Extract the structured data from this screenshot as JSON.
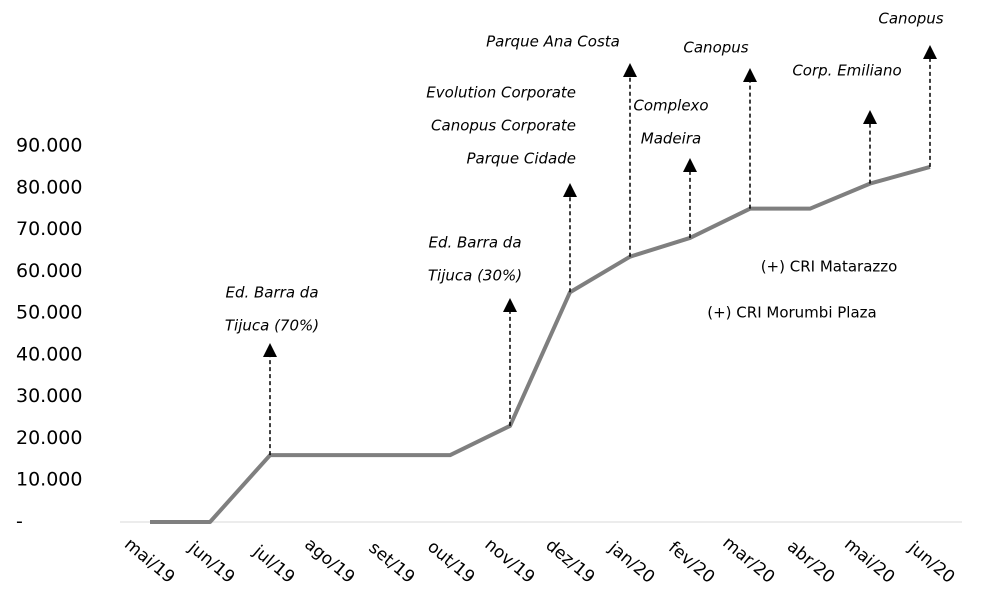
{
  "chart_data": {
    "type": "line",
    "categories": [
      "mai/19",
      "jun/19",
      "jul/19",
      "ago/19",
      "set/19",
      "out/19",
      "nov/19",
      "dez/19",
      "jan/20",
      "fev/20",
      "mar/20",
      "abr/20",
      "mai/20",
      "jun/20"
    ],
    "series": [
      {
        "color": "#7f7f7f",
        "values": [
          0,
          0,
          16000,
          16000,
          16000,
          16000,
          23000,
          55000,
          63500,
          68000,
          75000,
          75000,
          81000,
          85000
        ]
      }
    ],
    "ylim": [
      0,
      90000
    ],
    "yticks": [
      {
        "value": 0,
        "label": "-"
      },
      {
        "value": 10000,
        "label": "10.000"
      },
      {
        "value": 20000,
        "label": "20.000"
      },
      {
        "value": 30000,
        "label": "30.000"
      },
      {
        "value": 40000,
        "label": "40.000"
      },
      {
        "value": 50000,
        "label": "50.000"
      },
      {
        "value": 60000,
        "label": "60.000"
      },
      {
        "value": 70000,
        "label": "70.000"
      },
      {
        "value": 80000,
        "label": "80.000"
      },
      {
        "value": 90000,
        "label": "90.000"
      }
    ],
    "annotations": [
      {
        "category": "jul/19",
        "lines": [
          "Ed. Barra da",
          "Tijuca (70%)"
        ]
      },
      {
        "category": "nov/19",
        "lines": [
          "Ed. Barra da",
          "Tijuca (30%)"
        ]
      },
      {
        "category": "dez/19",
        "lines": [
          "Evolution Corporate",
          "Canopus Corporate",
          "Parque Cidade"
        ]
      },
      {
        "category": "jan/20",
        "lines": [
          "Parque Ana Costa"
        ]
      },
      {
        "category": "fev/20",
        "lines": [
          "Complexo",
          "Madeira"
        ]
      },
      {
        "category": "mar/20",
        "lines": [
          "Canopus"
        ]
      },
      {
        "category": "mai/20",
        "lines": [
          "Corp. Emiliano"
        ]
      },
      {
        "category": "jun/20",
        "lines": [
          "Canopus"
        ]
      }
    ],
    "notes": [
      "(+) CRI Matarazzo",
      "(+) CRI Morumbi Plaza"
    ]
  }
}
